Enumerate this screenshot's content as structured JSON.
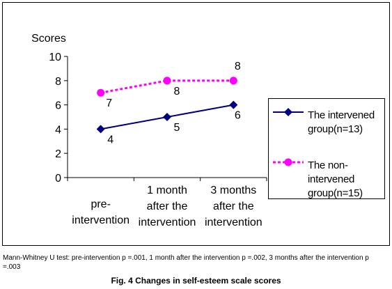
{
  "chart_data": {
    "type": "line",
    "ylabel": "Scores",
    "ylim": [
      0,
      10
    ],
    "yticks": [
      "0",
      "2",
      "4",
      "6",
      "8",
      "10"
    ],
    "categories": [
      [
        "pre-",
        "intervention"
      ],
      [
        "1 month",
        "after the",
        "intervention"
      ],
      [
        "3 months",
        "after the",
        "intervention"
      ]
    ],
    "series": [
      {
        "name": "The intervened group(n=13)",
        "name_lines": [
          "The intervened",
          "group(n=13)"
        ],
        "values": [
          4,
          5,
          6
        ],
        "labels": [
          "4",
          "5",
          "6"
        ],
        "color": "#00007f",
        "dashed": false,
        "marker": "diamond"
      },
      {
        "name": "The non-intervened group(n=15)",
        "name_lines": [
          "The non-",
          "intervened",
          "group(n=15)"
        ],
        "values": [
          7,
          8,
          8
        ],
        "labels": [
          "7",
          "8",
          "8"
        ],
        "color": "#ff00ff",
        "dashed": true,
        "marker": "circle"
      }
    ],
    "grid": false,
    "legend_position": "right"
  },
  "footnote": "Mann-Whitney U test: pre-intervention p =.001, 1 month after the intervention p =.002, 3 months after the intervention p =.003",
  "caption": "Fig. 4 Changes in self-esteem scale scores"
}
